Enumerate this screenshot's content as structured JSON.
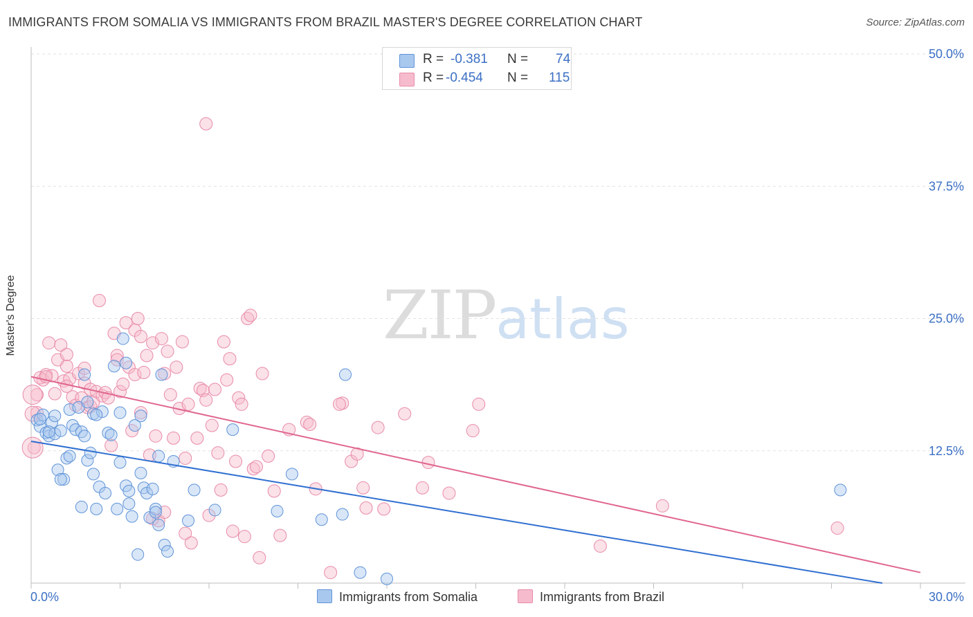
{
  "title": "IMMIGRANTS FROM SOMALIA VS IMMIGRANTS FROM BRAZIL MASTER'S DEGREE CORRELATION CHART",
  "source": "Source: ZipAtlas.com",
  "watermark": {
    "zip": "ZIP",
    "atlas": "atlas"
  },
  "legend": {
    "somalia": {
      "r_label": "R =",
      "r_value": "-0.381",
      "n_label": "N =",
      "n_value": "74"
    },
    "brazil": {
      "r_label": "R =",
      "r_value": "-0.454",
      "n_label": "N =",
      "n_value": "115"
    }
  },
  "bottom_legend": {
    "somalia": "Immigrants from Somalia",
    "brazil": "Immigrants from Brazil"
  },
  "colors": {
    "somalia_fill": "#a9c8ee",
    "somalia_stroke": "#5f93d8",
    "somalia_line": "#2f6fd1",
    "brazil_fill": "#f6bccd",
    "brazil_stroke": "#e88aa8",
    "brazil_line": "#e0668f",
    "axis_text": "#3b6fc4"
  },
  "chart_data": {
    "type": "scatter",
    "title": "IMMIGRANTS FROM SOMALIA VS IMMIGRANTS FROM BRAZIL MASTER'S DEGREE CORRELATION CHART",
    "xlabel": "",
    "ylabel": "Master's Degree",
    "xlim": [
      0,
      30
    ],
    "ylim": [
      0,
      50
    ],
    "x_tick_labels": [
      "0.0%",
      "30.0%"
    ],
    "y_ticks": [
      12.5,
      25.0,
      37.5,
      50.0
    ],
    "y_tick_labels": [
      "12.5%",
      "25.0%",
      "37.5%",
      "50.0%"
    ],
    "grid": true,
    "series": [
      {
        "name": "Immigrants from Somalia",
        "trend": {
          "x": [
            0,
            30
          ],
          "y": [
            13.4,
            -0.6
          ]
        },
        "points": [
          [
            0.2,
            15.4
          ],
          [
            0.3,
            14.8
          ],
          [
            0.4,
            15.9
          ],
          [
            0.5,
            14.2
          ],
          [
            0.6,
            13.9
          ],
          [
            0.7,
            15.2
          ],
          [
            0.8,
            14.1
          ],
          [
            0.8,
            15.8
          ],
          [
            0.9,
            10.7
          ],
          [
            1.0,
            14.4
          ],
          [
            1.1,
            9.8
          ],
          [
            1.2,
            11.8
          ],
          [
            1.3,
            16.4
          ],
          [
            1.3,
            12.0
          ],
          [
            1.4,
            14.9
          ],
          [
            1.5,
            14.5
          ],
          [
            1.6,
            16.6
          ],
          [
            1.7,
            14.3
          ],
          [
            1.7,
            7.2
          ],
          [
            1.8,
            19.7
          ],
          [
            1.8,
            13.9
          ],
          [
            1.9,
            11.6
          ],
          [
            1.9,
            17.1
          ],
          [
            2.0,
            12.3
          ],
          [
            2.1,
            16.0
          ],
          [
            2.1,
            10.3
          ],
          [
            2.2,
            7.0
          ],
          [
            2.3,
            9.1
          ],
          [
            2.4,
            16.2
          ],
          [
            2.5,
            8.5
          ],
          [
            2.6,
            14.2
          ],
          [
            2.7,
            14.0
          ],
          [
            2.8,
            20.5
          ],
          [
            2.9,
            7.0
          ],
          [
            3.0,
            16.1
          ],
          [
            3.0,
            11.4
          ],
          [
            3.1,
            23.1
          ],
          [
            3.2,
            20.8
          ],
          [
            3.2,
            9.2
          ],
          [
            3.3,
            7.5
          ],
          [
            3.4,
            6.3
          ],
          [
            3.5,
            14.9
          ],
          [
            3.6,
            2.7
          ],
          [
            3.7,
            10.4
          ],
          [
            3.7,
            15.8
          ],
          [
            3.8,
            9.0
          ],
          [
            3.9,
            8.5
          ],
          [
            4.0,
            6.2
          ],
          [
            4.1,
            8.9
          ],
          [
            4.2,
            7.0
          ],
          [
            4.3,
            5.5
          ],
          [
            4.3,
            12.0
          ],
          [
            4.4,
            19.7
          ],
          [
            4.5,
            3.6
          ],
          [
            4.6,
            3.0
          ],
          [
            4.8,
            11.5
          ],
          [
            5.3,
            5.9
          ],
          [
            5.5,
            8.8
          ],
          [
            6.2,
            6.9
          ],
          [
            6.8,
            14.5
          ],
          [
            8.3,
            6.8
          ],
          [
            8.8,
            10.3
          ],
          [
            9.8,
            6.0
          ],
          [
            10.5,
            6.5
          ],
          [
            10.6,
            19.7
          ],
          [
            11.1,
            1.0
          ],
          [
            12.0,
            0.4
          ],
          [
            27.3,
            8.8
          ],
          [
            0.3,
            15.5
          ],
          [
            0.6,
            14.3
          ],
          [
            1.0,
            9.8
          ],
          [
            2.2,
            15.9
          ],
          [
            3.3,
            8.7
          ],
          [
            4.2,
            6.7
          ]
        ]
      },
      {
        "name": "Immigrants from Brazil",
        "trend": {
          "x": [
            0,
            30
          ],
          "y": [
            19.5,
            1.0
          ]
        },
        "points": [
          [
            0.1,
            12.8
          ],
          [
            0.2,
            16.1
          ],
          [
            0.2,
            17.8
          ],
          [
            0.4,
            19.2
          ],
          [
            0.5,
            19.7
          ],
          [
            0.6,
            22.7
          ],
          [
            0.7,
            19.6
          ],
          [
            0.8,
            17.9
          ],
          [
            0.9,
            21.1
          ],
          [
            1.0,
            22.5
          ],
          [
            1.1,
            19.1
          ],
          [
            1.2,
            20.5
          ],
          [
            1.2,
            21.6
          ],
          [
            1.3,
            19.3
          ],
          [
            1.4,
            17.6
          ],
          [
            1.5,
            16.8
          ],
          [
            1.6,
            19.8
          ],
          [
            1.7,
            17.5
          ],
          [
            1.8,
            18.9
          ],
          [
            1.8,
            20.3
          ],
          [
            1.9,
            16.6
          ],
          [
            2.0,
            16.7
          ],
          [
            2.0,
            18.3
          ],
          [
            2.1,
            17.1
          ],
          [
            2.2,
            18.1
          ],
          [
            2.3,
            26.7
          ],
          [
            2.4,
            17.7
          ],
          [
            2.5,
            18.0
          ],
          [
            2.6,
            17.5
          ],
          [
            2.7,
            13.0
          ],
          [
            2.8,
            23.6
          ],
          [
            2.9,
            21.5
          ],
          [
            3.0,
            18.1
          ],
          [
            3.1,
            18.8
          ],
          [
            3.2,
            24.6
          ],
          [
            3.3,
            20.4
          ],
          [
            3.4,
            14.4
          ],
          [
            3.5,
            23.9
          ],
          [
            3.5,
            19.7
          ],
          [
            3.6,
            25.0
          ],
          [
            3.7,
            23.3
          ],
          [
            3.8,
            19.9
          ],
          [
            3.9,
            21.5
          ],
          [
            4.0,
            12.1
          ],
          [
            4.1,
            22.7
          ],
          [
            4.2,
            13.9
          ],
          [
            4.3,
            5.9
          ],
          [
            4.4,
            23.1
          ],
          [
            4.5,
            19.8
          ],
          [
            4.5,
            6.7
          ],
          [
            4.6,
            21.9
          ],
          [
            4.7,
            17.8
          ],
          [
            4.8,
            13.7
          ],
          [
            4.9,
            20.4
          ],
          [
            5.0,
            16.5
          ],
          [
            5.1,
            22.8
          ],
          [
            5.2,
            11.8
          ],
          [
            5.2,
            4.7
          ],
          [
            5.3,
            16.9
          ],
          [
            5.4,
            3.8
          ],
          [
            5.6,
            13.7
          ],
          [
            5.7,
            18.4
          ],
          [
            5.8,
            18.2
          ],
          [
            5.9,
            17.3
          ],
          [
            6.0,
            6.4
          ],
          [
            6.1,
            14.9
          ],
          [
            6.3,
            12.3
          ],
          [
            6.4,
            8.8
          ],
          [
            6.5,
            22.8
          ],
          [
            6.6,
            19.2
          ],
          [
            6.7,
            21.2
          ],
          [
            6.8,
            4.9
          ],
          [
            6.9,
            11.5
          ],
          [
            7.0,
            17.5
          ],
          [
            7.1,
            16.9
          ],
          [
            7.2,
            4.4
          ],
          [
            7.3,
            25.0
          ],
          [
            7.4,
            25.3
          ],
          [
            7.5,
            10.8
          ],
          [
            7.6,
            11.0
          ],
          [
            7.7,
            2.4
          ],
          [
            7.8,
            19.8
          ],
          [
            8.0,
            12.0
          ],
          [
            8.2,
            8.7
          ],
          [
            8.4,
            4.5
          ],
          [
            8.7,
            14.5
          ],
          [
            9.3,
            15.2
          ],
          [
            9.6,
            8.9
          ],
          [
            10.1,
            1.0
          ],
          [
            10.5,
            17.0
          ],
          [
            10.8,
            11.5
          ],
          [
            11.0,
            12.2
          ],
          [
            11.2,
            9.0
          ],
          [
            11.3,
            7.1
          ],
          [
            11.7,
            14.7
          ],
          [
            12.6,
            16.0
          ],
          [
            13.2,
            9.0
          ],
          [
            13.4,
            11.4
          ],
          [
            14.1,
            8.5
          ],
          [
            14.9,
            14.4
          ],
          [
            15.1,
            16.9
          ],
          [
            19.2,
            3.5
          ],
          [
            21.3,
            7.3
          ],
          [
            27.2,
            5.2
          ],
          [
            5.9,
            43.4
          ],
          [
            1.2,
            18.6
          ],
          [
            0.3,
            19.4
          ],
          [
            0.5,
            19.5
          ],
          [
            2.9,
            21.1
          ],
          [
            3.7,
            16.1
          ],
          [
            4.1,
            6.1
          ],
          [
            9.4,
            15.0
          ],
          [
            10.4,
            16.9
          ],
          [
            11.9,
            7.0
          ],
          [
            6.2,
            18.3
          ]
        ]
      }
    ]
  }
}
